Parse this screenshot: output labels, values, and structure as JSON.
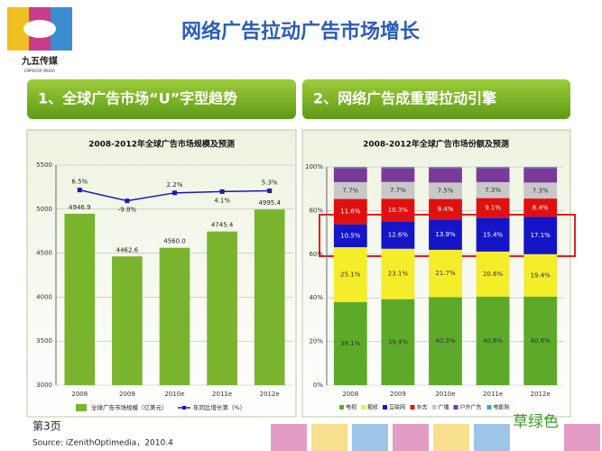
{
  "logo": {
    "name": "九五传媒",
    "subtitle": "EMPEROR MEDIA"
  },
  "title": "网络广告拉动广告市场增长",
  "sections": [
    "1、全球广告市场“U”字型趋势",
    "2、网络广告成重要拉动引擎"
  ],
  "footer": {
    "page": "第3页",
    "source": "Source: iZenithOptimedia，2010.4",
    "note": "草绿色"
  },
  "chart_data": [
    {
      "type": "bar",
      "title": "2008-2012年全球广告市场规模及预测",
      "categories": [
        "2008",
        "2009",
        "2010e",
        "2011e",
        "2012e"
      ],
      "series": [
        {
          "name": "全球广告市场规模（亿美元）",
          "color": "#7ab32e",
          "values": [
            4946.9,
            4462.6,
            4560.0,
            4745.4,
            4995.4
          ],
          "value_labels": [
            "4946.9",
            "4462.6",
            "4560.0",
            "4745.4",
            "4995.4"
          ]
        },
        {
          "name": "年同比增长率（%）",
          "type": "line",
          "axis": "y2",
          "color": "#1a1ab0",
          "values": [
            6.5,
            -9.8,
            2.2,
            4.1,
            5.3
          ],
          "value_labels": [
            "6.5%",
            "-9.8%",
            "2.2%",
            "4.1%",
            "5.3%"
          ]
        }
      ],
      "ylim": [
        3000,
        5500
      ],
      "yticks": [
        3000,
        3500,
        4000,
        4500,
        5000,
        5500
      ],
      "y2lim": [
        -287,
        44
      ],
      "grid": true
    },
    {
      "type": "stacked_bar",
      "title": "2008-2012年全球广告市场份额及预测",
      "categories": [
        "2008",
        "2009",
        "2010e",
        "2011e",
        "2012e"
      ],
      "series": [
        {
          "name": "电视",
          "color": "#5daa2a",
          "values": [
            38.1,
            39.4,
            40.3,
            40.6,
            40.6
          ],
          "value_labels": [
            "38.1%",
            "39.4%",
            "40.3%",
            "40.6%",
            "40.6%"
          ]
        },
        {
          "name": "报纸",
          "color": "#f5ec2a",
          "values": [
            25.1,
            23.1,
            21.7,
            20.6,
            19.4
          ],
          "value_labels": [
            "25.1%",
            "23.1%",
            "21.7%",
            "20.6%",
            "19.4%"
          ]
        },
        {
          "name": "互联网",
          "color": "#1515c8",
          "values": [
            10.5,
            12.6,
            13.9,
            15.4,
            17.1
          ],
          "value_labels": [
            "10.5%",
            "12.6%",
            "13.9%",
            "15.4%",
            "17.1%"
          ]
        },
        {
          "name": "杂志",
          "color": "#e01010",
          "values": [
            11.6,
            10.3,
            9.4,
            9.1,
            8.4
          ],
          "value_labels": [
            "11.6%",
            "10.3%",
            "9.4%",
            "9.1%",
            "8.4%"
          ]
        },
        {
          "name": "广播",
          "color": "#c8c8c8",
          "values": [
            7.7,
            7.7,
            7.5,
            7.3,
            7.3
          ],
          "value_labels": [
            "7.7%",
            "7.7%",
            "7.5%",
            "7.3%",
            "7.3%"
          ]
        },
        {
          "name": "户外广告",
          "color": "#7a3a9a",
          "values": [
            6.5,
            6.4,
            6.7,
            6.5,
            6.7
          ]
        },
        {
          "name": "电影院",
          "color": "#33aacc",
          "values": [
            0.5,
            0.5,
            0.5,
            0.5,
            0.5
          ]
        }
      ],
      "ylim": [
        0,
        100
      ],
      "yticks": [
        {
          "value": 0,
          "label": "0%"
        },
        {
          "value": 20,
          "label": "20%"
        },
        {
          "value": 40,
          "label": "40%"
        },
        {
          "value": 60,
          "label": "60%"
        },
        {
          "value": 80,
          "label": "80%"
        },
        {
          "value": 100,
          "label": "100%"
        }
      ],
      "grid": true
    }
  ]
}
